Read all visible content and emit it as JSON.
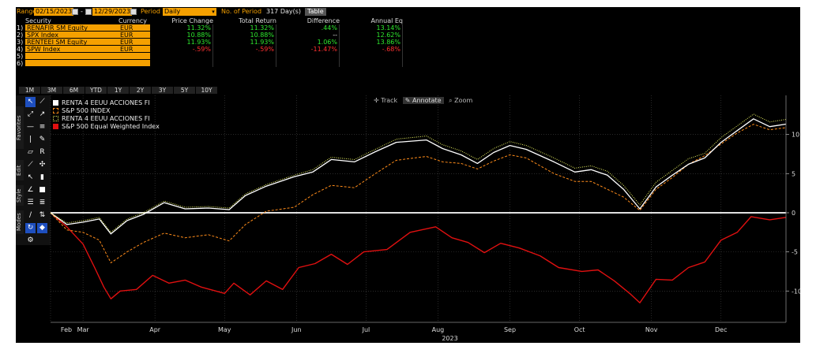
{
  "header": {
    "range_label": "Range",
    "range_start": "02/15/2023",
    "range_sep": "-",
    "range_end": "12/29/2023",
    "period_label": "Period",
    "period_value": "Daily",
    "nperiod_label": "No. of Period",
    "nperiod_value": "317 Day(s)",
    "table_button": "Table"
  },
  "table": {
    "columns": [
      "Security",
      "Currency",
      "Price Change",
      "Total Return",
      "Difference",
      "Annual Eq"
    ],
    "rows": [
      {
        "idx": "1)",
        "security": "RENAFIR SM Equity",
        "currency": "EUR",
        "price_change": "11.32%",
        "total_return": "11.32%",
        "difference": ".44%",
        "annual_eq": "13.14%"
      },
      {
        "idx": "2)",
        "security": "SPX Index",
        "currency": "EUR",
        "price_change": "10.88%",
        "total_return": "10.88%",
        "difference": "--",
        "annual_eq": "12.62%"
      },
      {
        "idx": "3)",
        "security": "RENTEEI SM Equity",
        "currency": "EUR",
        "price_change": "11.93%",
        "total_return": "11.93%",
        "difference": "1.06%",
        "annual_eq": "13.86%"
      },
      {
        "idx": "4)",
        "security": "SPW Index",
        "currency": "EUR",
        "price_change": "-.59%",
        "total_return": "-.59%",
        "difference": "-11.47%",
        "annual_eq": "-.68%"
      },
      {
        "idx": "5)",
        "security": "",
        "currency": "",
        "price_change": "",
        "total_return": "",
        "difference": "",
        "annual_eq": ""
      },
      {
        "idx": "6)",
        "security": "",
        "currency": "",
        "price_change": "",
        "total_return": "",
        "difference": "",
        "annual_eq": ""
      }
    ]
  },
  "period_buttons": [
    "1M",
    "3M",
    "6M",
    "YTD",
    "1Y",
    "2Y",
    "3Y",
    "5Y",
    "10Y"
  ],
  "side_tabs": [
    "Favorites",
    "Edit",
    "Style",
    "Modes"
  ],
  "chart_controls": {
    "track": "Track",
    "annotate": "Annotate",
    "zoom": "Zoom"
  },
  "colors": {
    "orange": "#f5a000",
    "white_series": "#ffffff",
    "spx_series": "#ff8c1a",
    "renteei_series": "#e8f060",
    "spw_series": "#e01010",
    "zero_line": "#e0e0e0"
  },
  "chart_data": {
    "type": "line",
    "title": "",
    "xlabel": "2023",
    "ylabel": "",
    "x_range": [
      "2023-02-15",
      "2023-12-29"
    ],
    "ylim": [
      -14,
      15
    ],
    "y_ticks": [
      -10,
      -5,
      0,
      5,
      10
    ],
    "y_tick_labels": [
      "-10",
      "-5",
      "0",
      "5",
      "10"
    ],
    "x_tick_labels": [
      "Feb",
      "Mar",
      "Apr",
      "May",
      "Jun",
      "Jul",
      "Aug",
      "Sep",
      "Oct",
      "Nov",
      "Dec"
    ],
    "x_tick_dates": [
      "2023-02-15",
      "2023-03-01",
      "2023-04-01",
      "2023-05-01",
      "2023-06-01",
      "2023-07-01",
      "2023-08-01",
      "2023-09-01",
      "2023-10-01",
      "2023-11-01",
      "2023-12-01"
    ],
    "grid": true,
    "legend_position": "top-left",
    "series": [
      {
        "name": "RENTA 4 EEUU ACCIONES FI",
        "style": "solid-white",
        "points": [
          [
            "2023-02-15",
            0
          ],
          [
            "2023-02-22",
            -1.5
          ],
          [
            "2023-03-01",
            -1.2
          ],
          [
            "2023-03-08",
            -0.8
          ],
          [
            "2023-03-13",
            -2.7
          ],
          [
            "2023-03-20",
            -1.0
          ],
          [
            "2023-03-27",
            -0.2
          ],
          [
            "2023-04-05",
            1.3
          ],
          [
            "2023-04-14",
            0.5
          ],
          [
            "2023-04-24",
            0.6
          ],
          [
            "2023-05-03",
            0.4
          ],
          [
            "2023-05-10",
            2.2
          ],
          [
            "2023-05-19",
            3.4
          ],
          [
            "2023-05-31",
            4.6
          ],
          [
            "2023-06-08",
            5.2
          ],
          [
            "2023-06-16",
            6.8
          ],
          [
            "2023-06-26",
            6.5
          ],
          [
            "2023-07-05",
            7.8
          ],
          [
            "2023-07-14",
            9.0
          ],
          [
            "2023-07-27",
            9.3
          ],
          [
            "2023-08-03",
            8.2
          ],
          [
            "2023-08-11",
            7.4
          ],
          [
            "2023-08-18",
            6.3
          ],
          [
            "2023-08-25",
            7.7
          ],
          [
            "2023-09-01",
            8.6
          ],
          [
            "2023-09-08",
            8.1
          ],
          [
            "2023-09-20",
            6.5
          ],
          [
            "2023-09-29",
            5.2
          ],
          [
            "2023-10-06",
            5.5
          ],
          [
            "2023-10-13",
            4.8
          ],
          [
            "2023-10-20",
            3.0
          ],
          [
            "2023-10-27",
            0.5
          ],
          [
            "2023-11-03",
            3.3
          ],
          [
            "2023-11-10",
            4.8
          ],
          [
            "2023-11-17",
            6.2
          ],
          [
            "2023-11-24",
            7.0
          ],
          [
            "2023-12-01",
            9.0
          ],
          [
            "2023-12-08",
            10.5
          ],
          [
            "2023-12-15",
            12.0
          ],
          [
            "2023-12-22",
            11.0
          ],
          [
            "2023-12-29",
            11.32
          ]
        ]
      },
      {
        "name": "S&P 500 INDEX",
        "style": "dashed-orange",
        "points": [
          [
            "2023-02-15",
            0
          ],
          [
            "2023-02-22",
            -2.2
          ],
          [
            "2023-03-01",
            -2.5
          ],
          [
            "2023-03-08",
            -3.5
          ],
          [
            "2023-03-13",
            -6.4
          ],
          [
            "2023-03-20",
            -5.0
          ],
          [
            "2023-03-27",
            -3.8
          ],
          [
            "2023-04-05",
            -2.6
          ],
          [
            "2023-04-14",
            -3.2
          ],
          [
            "2023-04-24",
            -2.8
          ],
          [
            "2023-05-03",
            -3.6
          ],
          [
            "2023-05-10",
            -1.5
          ],
          [
            "2023-05-19",
            0.2
          ],
          [
            "2023-05-31",
            0.7
          ],
          [
            "2023-06-08",
            2.3
          ],
          [
            "2023-06-16",
            3.5
          ],
          [
            "2023-06-26",
            3.2
          ],
          [
            "2023-07-05",
            5.0
          ],
          [
            "2023-07-14",
            6.7
          ],
          [
            "2023-07-27",
            7.2
          ],
          [
            "2023-08-03",
            6.5
          ],
          [
            "2023-08-11",
            6.3
          ],
          [
            "2023-08-18",
            5.6
          ],
          [
            "2023-08-25",
            6.6
          ],
          [
            "2023-09-01",
            7.4
          ],
          [
            "2023-09-08",
            7.0
          ],
          [
            "2023-09-20",
            5.0
          ],
          [
            "2023-09-29",
            4.0
          ],
          [
            "2023-10-06",
            4.0
          ],
          [
            "2023-10-13",
            3.0
          ],
          [
            "2023-10-20",
            2.0
          ],
          [
            "2023-10-27",
            0.3
          ],
          [
            "2023-11-03",
            3.0
          ],
          [
            "2023-11-10",
            4.5
          ],
          [
            "2023-11-17",
            6.2
          ],
          [
            "2023-11-24",
            7.3
          ],
          [
            "2023-12-01",
            8.8
          ],
          [
            "2023-12-08",
            10.2
          ],
          [
            "2023-12-15",
            11.3
          ],
          [
            "2023-12-22",
            10.6
          ],
          [
            "2023-12-29",
            10.88
          ]
        ]
      },
      {
        "name": "RENTA 4 EEUU ACCIONES FI",
        "style": "dotted-yellow",
        "points": [
          [
            "2023-02-15",
            0
          ],
          [
            "2023-02-22",
            -1.3
          ],
          [
            "2023-03-01",
            -1.0
          ],
          [
            "2023-03-08",
            -0.6
          ],
          [
            "2023-03-13",
            -2.5
          ],
          [
            "2023-03-20",
            -0.8
          ],
          [
            "2023-03-27",
            0.0
          ],
          [
            "2023-04-05",
            1.5
          ],
          [
            "2023-04-14",
            0.7
          ],
          [
            "2023-04-24",
            0.8
          ],
          [
            "2023-05-03",
            0.6
          ],
          [
            "2023-05-10",
            2.4
          ],
          [
            "2023-05-19",
            3.6
          ],
          [
            "2023-05-31",
            4.8
          ],
          [
            "2023-06-08",
            5.5
          ],
          [
            "2023-06-16",
            7.1
          ],
          [
            "2023-06-26",
            6.8
          ],
          [
            "2023-07-05",
            8.1
          ],
          [
            "2023-07-14",
            9.4
          ],
          [
            "2023-07-27",
            9.8
          ],
          [
            "2023-08-03",
            8.7
          ],
          [
            "2023-08-11",
            7.9
          ],
          [
            "2023-08-18",
            6.8
          ],
          [
            "2023-08-25",
            8.2
          ],
          [
            "2023-09-01",
            9.1
          ],
          [
            "2023-09-08",
            8.6
          ],
          [
            "2023-09-20",
            7.0
          ],
          [
            "2023-09-29",
            5.7
          ],
          [
            "2023-10-06",
            6.0
          ],
          [
            "2023-10-13",
            5.3
          ],
          [
            "2023-10-20",
            3.5
          ],
          [
            "2023-10-27",
            1.0
          ],
          [
            "2023-11-03",
            3.9
          ],
          [
            "2023-11-10",
            5.4
          ],
          [
            "2023-11-17",
            6.9
          ],
          [
            "2023-11-24",
            7.6
          ],
          [
            "2023-12-01",
            9.6
          ],
          [
            "2023-12-08",
            11.1
          ],
          [
            "2023-12-15",
            12.6
          ],
          [
            "2023-12-22",
            11.6
          ],
          [
            "2023-12-29",
            11.93
          ]
        ]
      },
      {
        "name": "S&P 500 Equal Weighted Index",
        "style": "solid-red",
        "points": [
          [
            "2023-02-15",
            0
          ],
          [
            "2023-02-22",
            -1.8
          ],
          [
            "2023-03-01",
            -4.0
          ],
          [
            "2023-03-06",
            -7.0
          ],
          [
            "2023-03-10",
            -9.5
          ],
          [
            "2023-03-13",
            -11.0
          ],
          [
            "2023-03-17",
            -10.0
          ],
          [
            "2023-03-24",
            -9.8
          ],
          [
            "2023-03-31",
            -8.0
          ],
          [
            "2023-04-07",
            -9.0
          ],
          [
            "2023-04-14",
            -8.6
          ],
          [
            "2023-04-21",
            -9.5
          ],
          [
            "2023-05-01",
            -10.3
          ],
          [
            "2023-05-05",
            -9.0
          ],
          [
            "2023-05-12",
            -10.5
          ],
          [
            "2023-05-19",
            -8.7
          ],
          [
            "2023-05-26",
            -9.8
          ],
          [
            "2023-06-02",
            -7.0
          ],
          [
            "2023-06-09",
            -6.5
          ],
          [
            "2023-06-16",
            -5.3
          ],
          [
            "2023-06-23",
            -6.6
          ],
          [
            "2023-06-30",
            -5.0
          ],
          [
            "2023-07-10",
            -4.7
          ],
          [
            "2023-07-20",
            -2.5
          ],
          [
            "2023-07-31",
            -1.8
          ],
          [
            "2023-08-07",
            -3.2
          ],
          [
            "2023-08-14",
            -3.8
          ],
          [
            "2023-08-21",
            -5.1
          ],
          [
            "2023-08-28",
            -3.9
          ],
          [
            "2023-09-05",
            -4.5
          ],
          [
            "2023-09-14",
            -5.5
          ],
          [
            "2023-09-22",
            -7.0
          ],
          [
            "2023-10-02",
            -7.5
          ],
          [
            "2023-10-09",
            -7.3
          ],
          [
            "2023-10-16",
            -8.7
          ],
          [
            "2023-10-23",
            -10.4
          ],
          [
            "2023-10-27",
            -11.5
          ],
          [
            "2023-11-03",
            -8.5
          ],
          [
            "2023-11-10",
            -8.6
          ],
          [
            "2023-11-17",
            -7.0
          ],
          [
            "2023-11-24",
            -6.3
          ],
          [
            "2023-12-01",
            -3.5
          ],
          [
            "2023-12-08",
            -2.5
          ],
          [
            "2023-12-14",
            -0.5
          ],
          [
            "2023-12-22",
            -0.9
          ],
          [
            "2023-12-29",
            -0.59
          ]
        ]
      }
    ]
  }
}
